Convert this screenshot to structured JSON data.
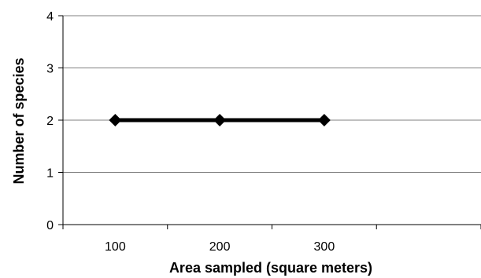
{
  "chart_data": {
    "type": "line",
    "title": "",
    "xlabel": "Area sampled (square meters)",
    "ylabel": "Number of species",
    "x": [
      100,
      200,
      300
    ],
    "series": [
      {
        "values": [
          2,
          2,
          2
        ],
        "color": "#000000",
        "marker": "diamond"
      }
    ],
    "xticks": [
      "100",
      "200",
      "300"
    ],
    "yticks": [
      "0",
      "1",
      "2",
      "3",
      "4"
    ],
    "ylim": [
      0,
      4
    ],
    "grid": true,
    "legend": "none",
    "colors": {
      "line": "#000000",
      "grid": "#808080",
      "axis": "#000000"
    }
  }
}
